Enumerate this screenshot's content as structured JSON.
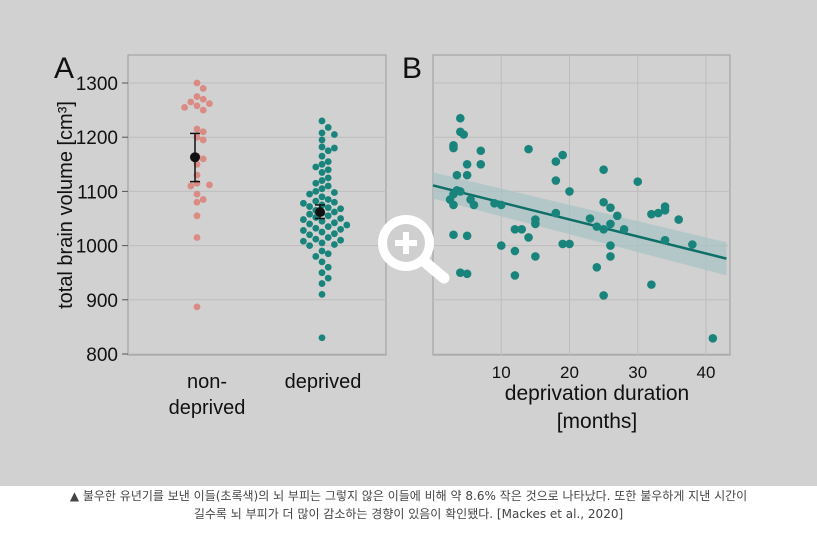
{
  "chart_data": [
    {
      "panel": "A",
      "type": "scatter",
      "title": "",
      "ylabel": "total brain volume [cm³]",
      "xlabel": "",
      "ylim": [
        800,
        1330
      ],
      "yticks": [
        800,
        900,
        1000,
        1100,
        1200,
        1300
      ],
      "categories": [
        "non-\ndeprived",
        "deprived"
      ],
      "category_lines": [
        [
          "non-",
          "deprived"
        ],
        [
          "deprived"
        ]
      ],
      "series": [
        {
          "name": "non-deprived",
          "color": "#d98b84",
          "mean": 1163,
          "error_low": 1118,
          "error_high": 1207,
          "points": [
            1300,
            1290,
            1275,
            1270,
            1265,
            1262,
            1258,
            1255,
            1250,
            1210,
            1215,
            1200,
            1195,
            1165,
            1160,
            1150,
            1130,
            1115,
            1112,
            1110,
            1095,
            1085,
            1080,
            1055,
            1015,
            887
          ]
        },
        {
          "name": "deprived",
          "color": "#19847c",
          "mean": 1062,
          "error_low": 1050,
          "error_high": 1075,
          "points": [
            1230,
            1218,
            1208,
            1205,
            1195,
            1182,
            1180,
            1175,
            1165,
            1155,
            1150,
            1145,
            1140,
            1135,
            1125,
            1120,
            1115,
            1110,
            1105,
            1100,
            1098,
            1095,
            1090,
            1085,
            1082,
            1080,
            1078,
            1075,
            1072,
            1070,
            1068,
            1065,
            1062,
            1060,
            1058,
            1055,
            1052,
            1050,
            1048,
            1045,
            1042,
            1040,
            1038,
            1035,
            1032,
            1030,
            1028,
            1025,
            1022,
            1020,
            1015,
            1012,
            1010,
            1008,
            1005,
            1002,
            1000,
            990,
            985,
            980,
            970,
            960,
            950,
            940,
            930,
            910,
            830
          ]
        }
      ]
    },
    {
      "panel": "B",
      "type": "scatter",
      "title": "",
      "xlabel": "deprivation duration [months]",
      "xlabel_lines": [
        "deprivation duration",
        "[months]"
      ],
      "ylabel": "",
      "xlim": [
        0,
        43
      ],
      "ylim": [
        800,
        1330
      ],
      "xticks": [
        10,
        20,
        30,
        40
      ],
      "color": "#19847c",
      "fit": {
        "x": [
          0,
          43
        ],
        "y": [
          1111,
          976
        ],
        "ci_start": [
          1087,
          1135
        ],
        "ci_end": [
          945,
          1006
        ]
      },
      "points": [
        [
          3,
          1185
        ],
        [
          3,
          1180
        ],
        [
          3.5,
          1130
        ],
        [
          3,
          1095
        ],
        [
          3.5,
          1102
        ],
        [
          4,
          1100
        ],
        [
          2.5,
          1085
        ],
        [
          3,
          1075
        ],
        [
          4,
          1235
        ],
        [
          4,
          1210
        ],
        [
          4.5,
          1205
        ],
        [
          5,
          1150
        ],
        [
          5,
          1130
        ],
        [
          5.5,
          1085
        ],
        [
          6,
          1075
        ],
        [
          7,
          1175
        ],
        [
          7,
          1150
        ],
        [
          3,
          1020
        ],
        [
          5,
          1018
        ],
        [
          4,
          950
        ],
        [
          5,
          948
        ],
        [
          9,
          1078
        ],
        [
          10,
          1075
        ],
        [
          10,
          1000
        ],
        [
          12,
          1030
        ],
        [
          13,
          1030
        ],
        [
          12,
          990
        ],
        [
          12,
          945
        ],
        [
          14,
          1178
        ],
        [
          14,
          1015
        ],
        [
          15,
          1048
        ],
        [
          15,
          1040
        ],
        [
          15,
          980
        ],
        [
          18,
          1155
        ],
        [
          19,
          1167
        ],
        [
          18,
          1120
        ],
        [
          20,
          1100
        ],
        [
          18,
          1060
        ],
        [
          19,
          1003
        ],
        [
          20,
          1003
        ],
        [
          23,
          1050
        ],
        [
          25,
          1140
        ],
        [
          25,
          1080
        ],
        [
          26,
          1070
        ],
        [
          26,
          1040
        ],
        [
          24,
          1035
        ],
        [
          25,
          1030
        ],
        [
          27,
          1055
        ],
        [
          28,
          1030
        ],
        [
          26,
          1000
        ],
        [
          26,
          980
        ],
        [
          24,
          960
        ],
        [
          25,
          908
        ],
        [
          30,
          1118
        ],
        [
          33,
          1060
        ],
        [
          34,
          1065
        ],
        [
          34,
          1072
        ],
        [
          32,
          1058
        ],
        [
          34,
          1010
        ],
        [
          36,
          1048
        ],
        [
          38,
          1002
        ],
        [
          32,
          928
        ],
        [
          41,
          829
        ]
      ]
    }
  ],
  "figure": {
    "label_a": "A",
    "label_b": "B",
    "zoom_icon": "zoom-in-icon"
  },
  "caption": {
    "line1": "▲ 불우한 유년기를 보낸 이들(초록색)의 뇌 부피는 그렇지 않은 이들에 비해 약 8.6% 작은 것으로 나타났다. 또한 불우하게 지낸 시간이",
    "line2": "길수록 뇌 부피가 더 많이 감소하는 경향이 있음이 확인됐다. [Mackes et al., 2020]"
  }
}
